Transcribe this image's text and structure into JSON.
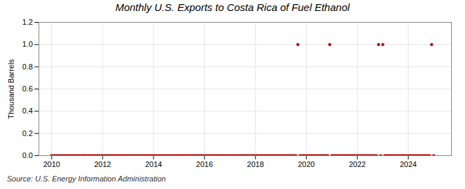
{
  "chart_data": {
    "type": "scatter",
    "title": "Monthly U.S. Exports to Costa Rica of Fuel Ethanol",
    "y_label": "Thousand Barrels",
    "annotations": [
      "Source: U.S. Energy Information Administration"
    ],
    "color": "#aa0000",
    "marker": "square",
    "grid": true,
    "xlim": [
      2009.5,
      2025.7
    ],
    "xticks": [
      2010,
      2012,
      2014,
      2016,
      2018,
      2020,
      2022,
      2024
    ],
    "ylim": [
      0.0,
      1.2
    ],
    "yticks": [
      {
        "value": 0,
        "label": "0.0"
      },
      0.2,
      0.4,
      0.6,
      0.8,
      {
        "value": 1,
        "label": "1.0"
      },
      1.2
    ],
    "x": [
      2010.0,
      2010.083,
      2010.167,
      2010.25,
      2010.333,
      2010.417,
      2010.5,
      2010.583,
      2010.667,
      2010.75,
      2010.833,
      2010.917,
      2011.0,
      2011.083,
      2011.167,
      2011.25,
      2011.333,
      2011.417,
      2011.5,
      2011.583,
      2011.667,
      2011.75,
      2011.833,
      2011.917,
      2012.0,
      2012.083,
      2012.167,
      2012.25,
      2012.333,
      2012.417,
      2012.5,
      2012.583,
      2012.667,
      2012.75,
      2012.833,
      2012.917,
      2013.0,
      2013.083,
      2013.167,
      2013.25,
      2013.333,
      2013.417,
      2013.5,
      2013.583,
      2013.667,
      2013.75,
      2013.833,
      2013.917,
      2014.0,
      2014.083,
      2014.167,
      2014.25,
      2014.333,
      2014.417,
      2014.5,
      2014.583,
      2014.667,
      2014.75,
      2014.833,
      2014.917,
      2015.0,
      2015.083,
      2015.167,
      2015.25,
      2015.333,
      2015.417,
      2015.5,
      2015.583,
      2015.667,
      2015.75,
      2015.833,
      2015.917,
      2016.0,
      2016.083,
      2016.167,
      2016.25,
      2016.333,
      2016.417,
      2016.5,
      2016.583,
      2016.667,
      2016.75,
      2016.833,
      2016.917,
      2017.0,
      2017.083,
      2017.167,
      2017.25,
      2017.333,
      2017.417,
      2017.5,
      2017.583,
      2017.667,
      2017.75,
      2017.833,
      2017.917,
      2018.0,
      2018.083,
      2018.167,
      2018.25,
      2018.333,
      2018.417,
      2018.5,
      2018.583,
      2018.667,
      2018.75,
      2018.833,
      2018.917,
      2019.0,
      2019.083,
      2019.167,
      2019.25,
      2019.333,
      2019.417,
      2019.5,
      2019.583,
      2019.667,
      2019.75,
      2019.833,
      2019.917,
      2020.0,
      2020.083,
      2020.167,
      2020.25,
      2020.333,
      2020.417,
      2020.5,
      2020.583,
      2020.667,
      2020.75,
      2020.833,
      2020.917,
      2021.0,
      2021.083,
      2021.167,
      2021.25,
      2021.333,
      2021.417,
      2021.5,
      2021.583,
      2021.667,
      2021.75,
      2021.833,
      2021.917,
      2022.0,
      2022.083,
      2022.167,
      2022.25,
      2022.333,
      2022.417,
      2022.5,
      2022.583,
      2022.667,
      2022.75,
      2022.833,
      2022.917,
      2023.0,
      2023.083,
      2023.167,
      2023.25,
      2023.333,
      2023.417,
      2023.5,
      2023.583,
      2023.667,
      2023.75,
      2023.833,
      2023.917,
      2024.0,
      2024.083,
      2024.167,
      2024.25,
      2024.333,
      2024.417,
      2024.5,
      2024.583,
      2024.667,
      2024.75,
      2024.833,
      2024.917,
      2025.0
    ],
    "values": [
      0,
      0,
      0,
      0,
      0,
      0,
      0,
      0,
      0,
      0,
      0,
      0,
      0,
      0,
      0,
      0,
      0,
      0,
      0,
      0,
      0,
      0,
      0,
      0,
      0,
      0,
      0,
      0,
      0,
      0,
      0,
      0,
      0,
      0,
      0,
      0,
      0,
      0,
      0,
      0,
      0,
      0,
      0,
      0,
      0,
      0,
      0,
      0,
      0,
      0,
      0,
      0,
      0,
      0,
      0,
      0,
      0,
      0,
      0,
      0,
      0,
      0,
      0,
      0,
      0,
      0,
      0,
      0,
      0,
      0,
      0,
      0,
      0,
      0,
      0,
      0,
      0,
      0,
      0,
      0,
      0,
      0,
      0,
      0,
      0,
      0,
      0,
      0,
      0,
      0,
      0,
      0,
      0,
      0,
      0,
      0,
      0,
      0,
      0,
      0,
      0,
      0,
      0,
      0,
      0,
      0,
      0,
      0,
      0,
      0,
      0,
      0,
      0,
      0,
      0,
      0,
      1,
      0,
      0,
      0,
      0,
      0,
      0,
      0,
      0,
      0,
      0,
      0,
      0,
      0,
      0,
      1,
      0,
      0,
      0,
      0,
      0,
      0,
      0,
      0,
      0,
      0,
      0,
      0,
      0,
      0,
      0,
      0,
      0,
      0,
      0,
      0,
      0,
      0,
      1,
      0,
      1,
      0,
      0,
      0,
      0,
      0,
      0,
      0,
      0,
      0,
      0,
      0,
      0,
      0,
      0,
      0,
      0,
      0,
      0,
      0,
      0,
      0,
      0,
      1,
      0
    ]
  }
}
